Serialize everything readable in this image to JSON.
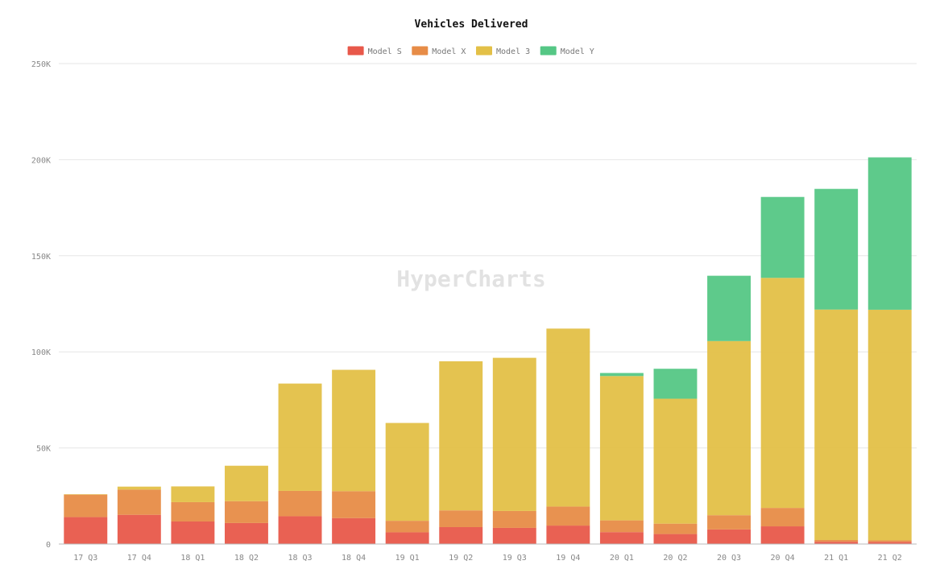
{
  "chart_data": {
    "type": "bar",
    "stacked": true,
    "title": "Vehicles Delivered",
    "watermark": "HyperCharts",
    "xlabel": "",
    "ylabel": "",
    "ylim": [
      0,
      250000
    ],
    "yticks": [
      0,
      50000,
      100000,
      150000,
      200000,
      250000
    ],
    "ytick_labels": [
      "0",
      "50K",
      "100K",
      "150K",
      "200K",
      "250K"
    ],
    "grid": true,
    "legend_position": "top-center",
    "categories": [
      "17 Q3",
      "17 Q4",
      "18 Q1",
      "18 Q2",
      "18 Q3",
      "18 Q4",
      "19 Q1",
      "19 Q2",
      "19 Q3",
      "19 Q4",
      "20 Q1",
      "20 Q2",
      "20 Q3",
      "20 Q4",
      "21 Q1",
      "21 Q2"
    ],
    "series": [
      {
        "name": "Model S",
        "color": "#e8584a",
        "values": [
          14000,
          15200,
          11730,
          10930,
          14470,
          13500,
          6100,
          8800,
          8400,
          9600,
          6200,
          5200,
          7600,
          9200,
          1200,
          1100
        ]
      },
      {
        "name": "Model X",
        "color": "#e78c47",
        "values": [
          11700,
          13120,
          10070,
          11370,
          13190,
          14000,
          6000,
          8700,
          8800,
          9900,
          6100,
          5400,
          7400,
          9600,
          900,
          800
        ]
      },
      {
        "name": "Model 3",
        "color": "#e3c047",
        "values": [
          220,
          1550,
          8180,
          18440,
          55840,
          63150,
          50900,
          77600,
          79700,
          92600,
          75100,
          65000,
          90600,
          119700,
          119900,
          120000
        ]
      },
      {
        "name": "Model Y",
        "color": "#55c785",
        "values": [
          0,
          0,
          0,
          0,
          0,
          0,
          0,
          0,
          0,
          0,
          1600,
          15600,
          34000,
          42100,
          62800,
          79300
        ]
      }
    ]
  }
}
